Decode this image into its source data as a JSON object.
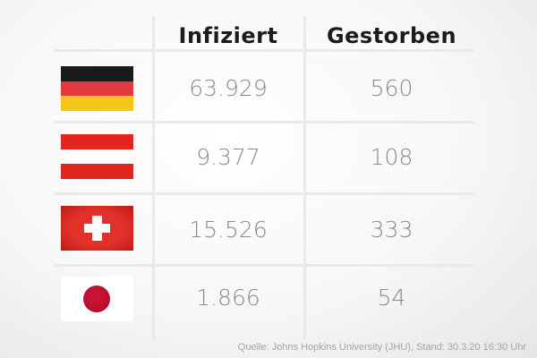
{
  "headers": {
    "infected": "Infiziert",
    "deaths": "Gestorben"
  },
  "rows": [
    {
      "country": "Deutschland",
      "flag_icon": "germany-flag-icon",
      "infected": "63.929",
      "deaths": "560"
    },
    {
      "country": "Österreich",
      "flag_icon": "austria-flag-icon",
      "infected": "9.377",
      "deaths": "108"
    },
    {
      "country": "Schweiz",
      "flag_icon": "switzerland-flag-icon",
      "infected": "15.526",
      "deaths": "333"
    },
    {
      "country": "Japan",
      "flag_icon": "japan-flag-icon",
      "infected": "1.866",
      "deaths": "54"
    }
  ],
  "source": "Quelle: Johns Hopkins University (JHU), Stand: 30.3.20 16:30 Uhr",
  "colors": {
    "germany_black": "#1a1a1a",
    "germany_red": "#e03a3e",
    "germany_gold": "#f5c518",
    "austria_red": "#e0261f",
    "swiss_red": "#d7261e",
    "japan_red": "#bc0f2e"
  }
}
